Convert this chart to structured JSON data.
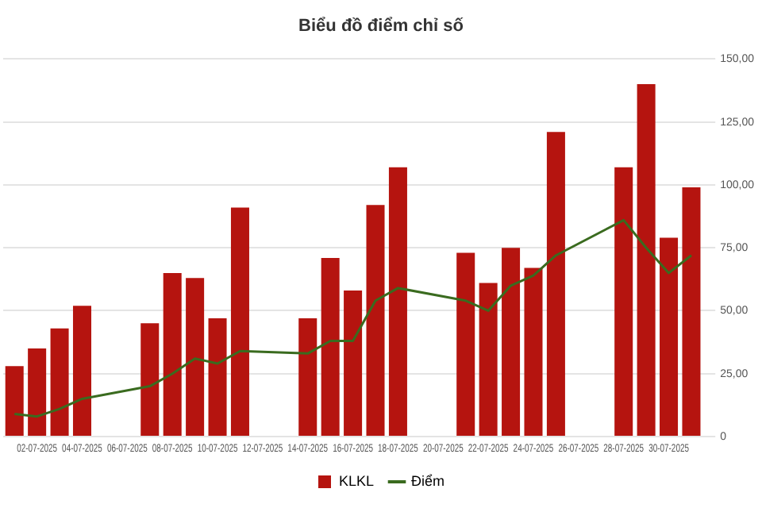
{
  "chart_data": {
    "type": "bar",
    "title": "Biểu đồ điểm chỉ số",
    "categories": [
      null,
      "02-07-2025",
      null,
      "04-07-2025",
      null,
      "06-07-2025",
      null,
      "08-07-2025",
      null,
      "10-07-2025",
      null,
      "12-07-2025",
      null,
      "14-07-2025",
      null,
      "16-07-2025",
      null,
      "18-07-2025",
      null,
      "20-07-2025",
      null,
      "22-07-2025",
      null,
      "24-07-2025",
      null,
      "26-07-2025",
      null,
      "28-07-2025",
      null,
      "30-07-2025",
      null
    ],
    "series": [
      {
        "name": "KLKL",
        "color": "#b5140f",
        "values": [
          28,
          35,
          43,
          52,
          null,
          null,
          45,
          65,
          63,
          47,
          91,
          null,
          null,
          47,
          71,
          58,
          92,
          107,
          null,
          null,
          73,
          61,
          75,
          67,
          121,
          null,
          null,
          107,
          140,
          79,
          99
        ]
      },
      {
        "name": "Điểm",
        "type": "line",
        "color": "#3a6b1f",
        "values": [
          9,
          8,
          11,
          15,
          null,
          null,
          20,
          25,
          31,
          29,
          34,
          null,
          null,
          33,
          38,
          38,
          54,
          59,
          null,
          null,
          54,
          50,
          60,
          64,
          72,
          null,
          null,
          86,
          75,
          65,
          72
        ]
      }
    ],
    "ylim": [
      0,
      150
    ],
    "yticks": [
      {
        "value": 0,
        "label": "0"
      },
      {
        "value": 25,
        "label": "25,00"
      },
      {
        "value": 50,
        "label": "50,00"
      },
      {
        "value": 75,
        "label": "75,00"
      },
      {
        "value": 100,
        "label": "100,00"
      },
      {
        "value": 125,
        "label": "125,00"
      },
      {
        "value": 150,
        "label": "150,00"
      }
    ],
    "grid": "y",
    "legend": "bottom",
    "marker": "none",
    "line_style": "solid"
  }
}
